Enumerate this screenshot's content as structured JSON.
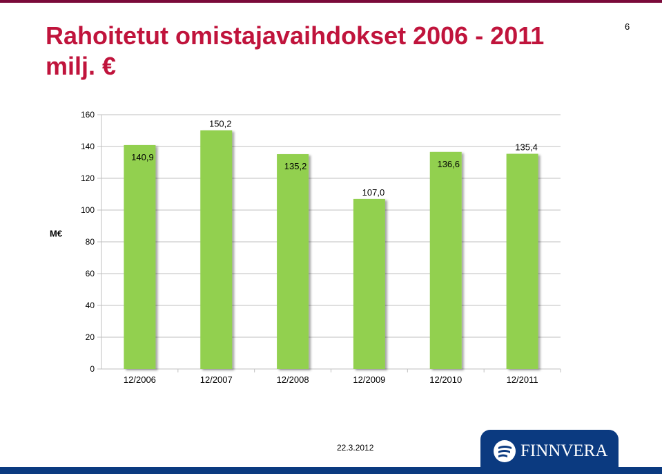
{
  "slide": {
    "title": "Rahoitetut omistajavaihdokset 2006 - 2011 milj. €",
    "page_number": "6",
    "date": "22.3.2012",
    "colors": {
      "accent_top": "#7a0a3a",
      "title": "#c0143c",
      "brand_blue": "#0b3a80"
    }
  },
  "logo": {
    "text": "FINNVERA",
    "icon": "finnvera-logo-icon"
  },
  "chart_data": {
    "type": "bar",
    "categories": [
      "12/2006",
      "12/2007",
      "12/2008",
      "12/2009",
      "12/2010",
      "12/2011"
    ],
    "values": [
      140.9,
      150.2,
      135.2,
      107.0,
      136.6,
      135.4
    ],
    "data_labels": [
      "140,9",
      "150,2",
      "135,2",
      "107,0",
      "136,6",
      "135,4"
    ],
    "ylabel": "M€",
    "ylim": [
      0,
      160
    ],
    "yticks": [
      0,
      20,
      40,
      60,
      80,
      100,
      120,
      140,
      160
    ],
    "grid": true,
    "legend": "none",
    "bar_color": "#92d050"
  }
}
